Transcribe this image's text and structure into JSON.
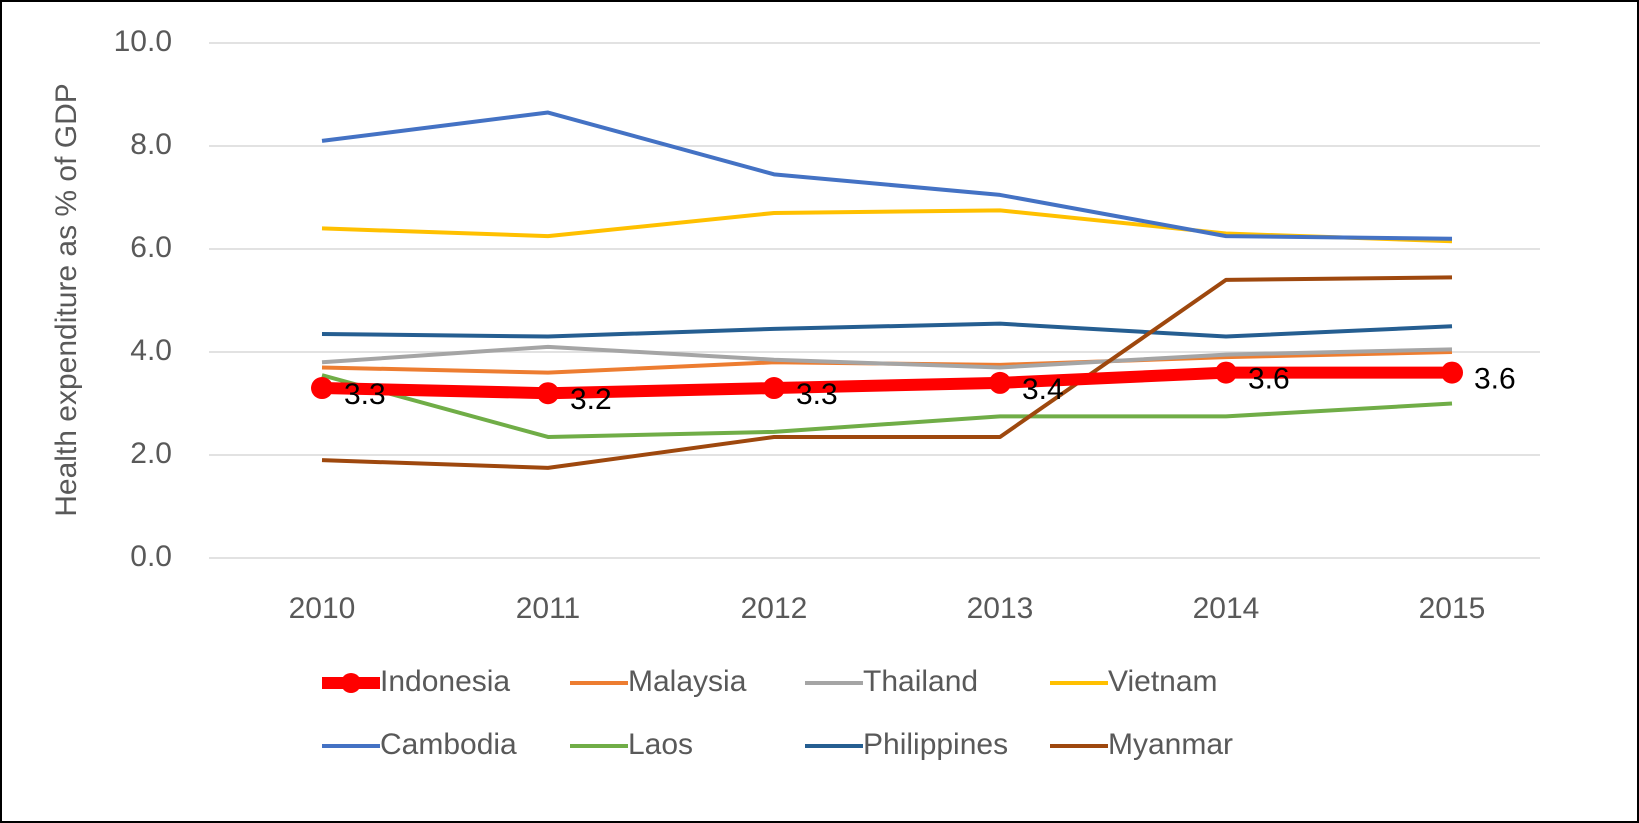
{
  "chart_data": {
    "type": "line",
    "y_label": "Health expenditure as % of GDP",
    "categories": [
      "2010",
      "2011",
      "2012",
      "2013",
      "2014",
      "2015"
    ],
    "ylim": [
      0,
      10
    ],
    "yticks": [
      {
        "value": 0,
        "label": "0.0"
      },
      {
        "value": 2,
        "label": "2.0"
      },
      {
        "value": 4,
        "label": "4.0"
      },
      {
        "value": 6,
        "label": "6.0"
      },
      {
        "value": 8,
        "label": "8.0"
      },
      {
        "value": 10,
        "label": "10.0"
      }
    ],
    "grid": true,
    "legend": "bottom",
    "series": [
      {
        "name": "Indonesia",
        "color": "#ff0000",
        "values": [
          3.3,
          3.2,
          3.3,
          3.4,
          3.6,
          3.6
        ],
        "data_labels": true
      },
      {
        "name": "Malaysia",
        "color": "#ed7d31",
        "values": [
          3.7,
          3.6,
          3.8,
          3.75,
          3.9,
          4.0
        ]
      },
      {
        "name": "Thailand",
        "color": "#a5a5a5",
        "values": [
          3.8,
          4.1,
          3.85,
          3.7,
          3.95,
          4.05
        ]
      },
      {
        "name": "Vietnam",
        "color": "#ffc000",
        "values": [
          6.4,
          6.25,
          6.7,
          6.75,
          6.3,
          6.15
        ]
      },
      {
        "name": "Cambodia",
        "color": "#4472c4",
        "values": [
          8.1,
          8.65,
          7.45,
          7.05,
          6.25,
          6.2
        ]
      },
      {
        "name": "Laos",
        "color": "#70ad47",
        "values": [
          3.55,
          2.35,
          2.45,
          2.75,
          2.75,
          3.0
        ]
      },
      {
        "name": "Philippines",
        "color": "#255e91",
        "values": [
          4.35,
          4.3,
          4.45,
          4.55,
          4.3,
          4.5
        ]
      },
      {
        "name": "Myanmar",
        "color": "#9e480e",
        "values": [
          1.9,
          1.75,
          2.35,
          2.35,
          5.4,
          5.45
        ]
      }
    ]
  }
}
